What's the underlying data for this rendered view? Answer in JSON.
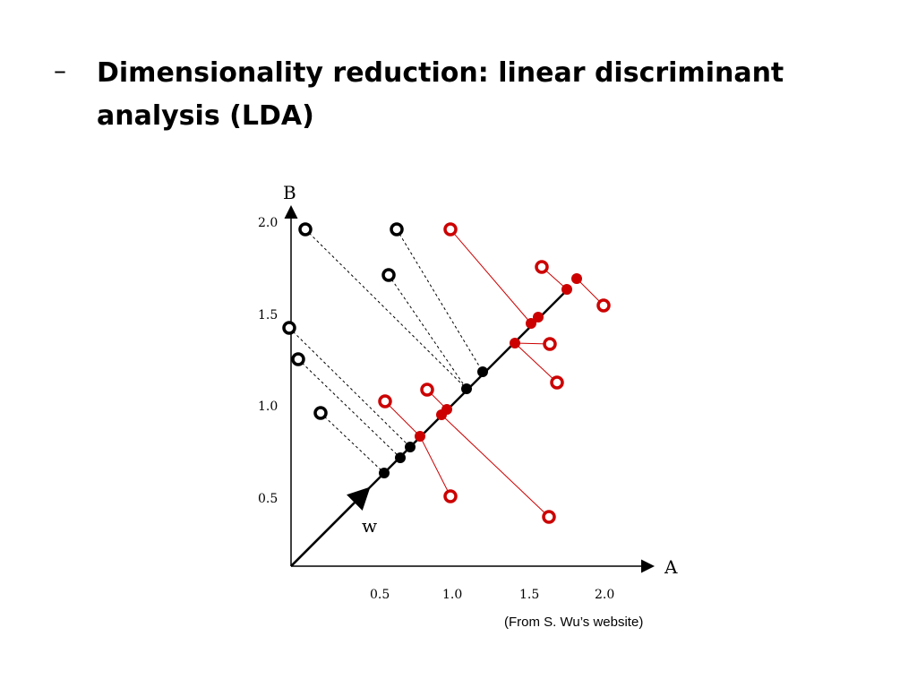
{
  "slide": {
    "bullet": "–",
    "title": "Dimensionality reduction: linear discriminant analysis (LDA)"
  },
  "diagram": {
    "x_axis_label": "A",
    "y_axis_label": "B",
    "vector_label": "w",
    "credit": "(From S. Wu’s website)",
    "x_ticks": [
      "0.5",
      "1.0",
      "1.5",
      "2.0"
    ],
    "y_ticks": [
      "0.5",
      "1.0",
      "1.5",
      "2.0"
    ],
    "colors": {
      "class1": "#000000",
      "class2": "#cc0000",
      "axis": "#000000"
    }
  }
}
